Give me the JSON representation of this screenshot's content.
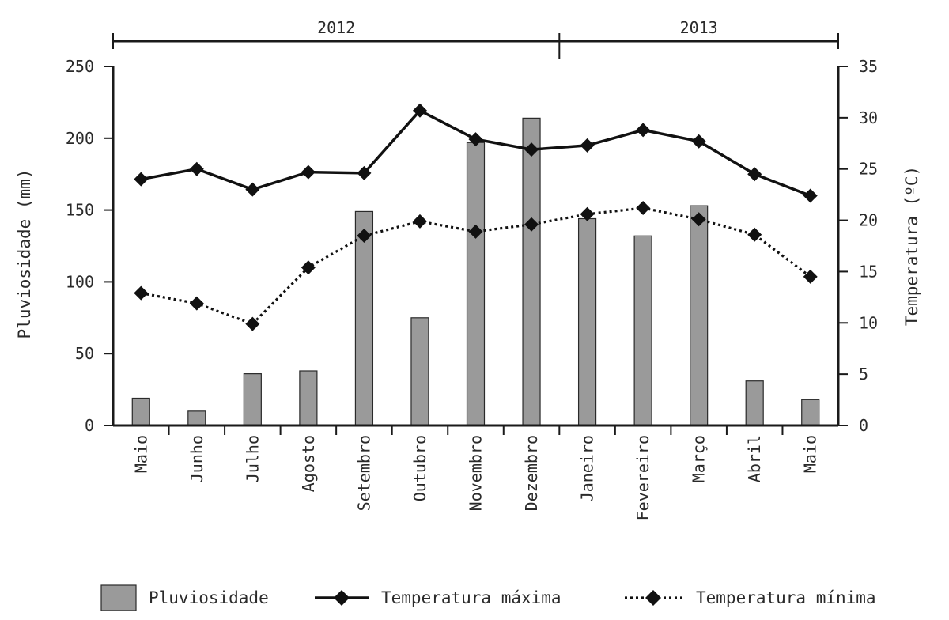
{
  "chart_data": {
    "type": "bar",
    "categories": [
      "Maio",
      "Junho",
      "Julho",
      "Agosto",
      "Setembro",
      "Outubro",
      "Novembro",
      "Dezembro",
      "Janeiro",
      "Fevereiro",
      "Março",
      "Abril",
      "Maio"
    ],
    "year_groups": [
      {
        "label": "2012",
        "from": 0,
        "to": 7
      },
      {
        "label": "2013",
        "from": 8,
        "to": 12
      }
    ],
    "ylabel": "Pluviosidade (mm)",
    "ylim": [
      0,
      250
    ],
    "yticks": [
      0,
      50,
      100,
      150,
      200,
      250
    ],
    "y2label": "Temperatura (ºC)",
    "y2lim": [
      0,
      35
    ],
    "y2ticks": [
      0,
      5,
      10,
      15,
      20,
      25,
      30,
      35
    ],
    "series": [
      {
        "name": "Pluviosidade",
        "kind": "bar",
        "axis": "left",
        "values": [
          19,
          10,
          36,
          38,
          149,
          75,
          197,
          214,
          144,
          132,
          153,
          31,
          18
        ]
      },
      {
        "name": "Temperatura máxima",
        "kind": "line",
        "style": "solid",
        "axis": "right",
        "values": [
          24.0,
          25.0,
          23.0,
          24.7,
          24.6,
          30.7,
          27.9,
          26.9,
          27.3,
          28.8,
          27.7,
          24.5,
          22.4
        ]
      },
      {
        "name": "Temperatura mínima",
        "kind": "line",
        "style": "dotted",
        "axis": "right",
        "values": [
          12.9,
          11.9,
          9.9,
          15.4,
          18.5,
          19.9,
          18.9,
          19.6,
          20.6,
          21.2,
          20.1,
          18.6,
          14.5
        ]
      }
    ],
    "legend_position": "bottom",
    "grid": false,
    "colors": {
      "bar": "#9a9a9a",
      "line": "#111111"
    }
  }
}
